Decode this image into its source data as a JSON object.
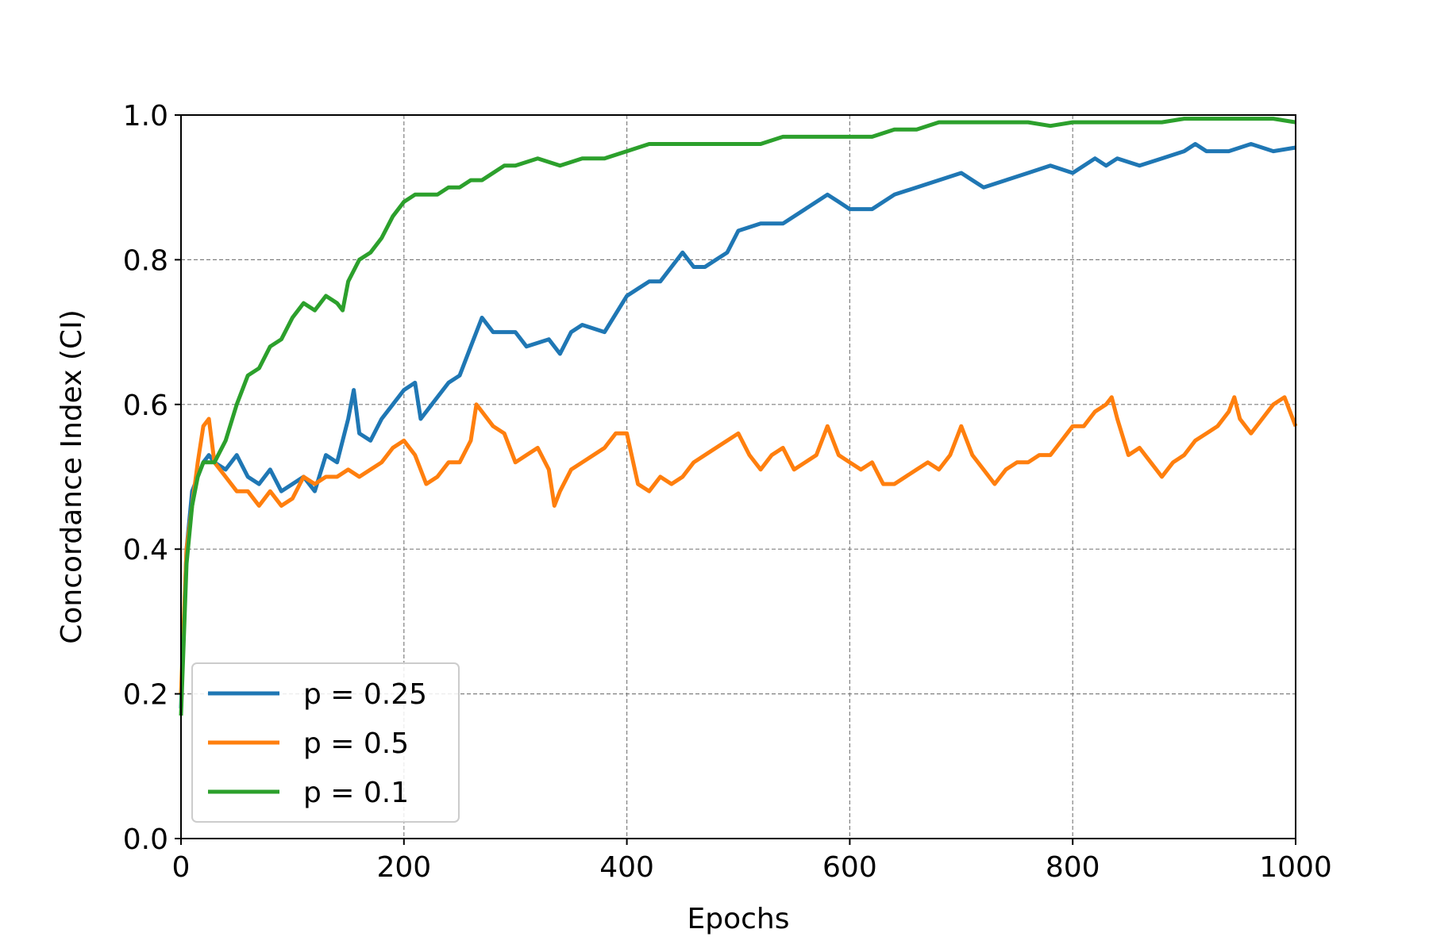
{
  "chart_data": {
    "type": "line",
    "title": "",
    "xlabel": "Epochs",
    "ylabel": "Concordance Index (CI)",
    "xlim": [
      0,
      1000
    ],
    "ylim": [
      0.0,
      1.0
    ],
    "xticks": [
      "0",
      "200",
      "400",
      "600",
      "800",
      "1000"
    ],
    "yticks": [
      "0.0",
      "0.2",
      "0.4",
      "0.6",
      "0.8",
      "1.0"
    ],
    "grid": true,
    "legend_position": "lower-left",
    "series": [
      {
        "name": "p = 0.25",
        "color": "#1f77b4",
        "x": [
          0,
          5,
          10,
          15,
          20,
          25,
          30,
          40,
          50,
          60,
          70,
          80,
          90,
          100,
          110,
          120,
          130,
          140,
          150,
          155,
          160,
          170,
          180,
          190,
          200,
          210,
          215,
          225,
          240,
          250,
          260,
          270,
          280,
          300,
          310,
          330,
          340,
          350,
          360,
          380,
          400,
          410,
          420,
          430,
          440,
          450,
          460,
          470,
          480,
          490,
          500,
          520,
          540,
          560,
          580,
          590,
          600,
          620,
          640,
          660,
          680,
          700,
          710,
          720,
          740,
          760,
          780,
          800,
          820,
          830,
          840,
          860,
          880,
          900,
          910,
          920,
          940,
          960,
          980,
          1000
        ],
        "y": [
          0.18,
          0.4,
          0.48,
          0.5,
          0.52,
          0.53,
          0.52,
          0.51,
          0.53,
          0.5,
          0.49,
          0.51,
          0.48,
          0.49,
          0.5,
          0.48,
          0.53,
          0.52,
          0.58,
          0.62,
          0.56,
          0.55,
          0.58,
          0.6,
          0.62,
          0.63,
          0.58,
          0.6,
          0.63,
          0.64,
          0.68,
          0.72,
          0.7,
          0.7,
          0.68,
          0.69,
          0.67,
          0.7,
          0.71,
          0.7,
          0.75,
          0.76,
          0.77,
          0.77,
          0.79,
          0.81,
          0.79,
          0.79,
          0.8,
          0.81,
          0.84,
          0.85,
          0.85,
          0.87,
          0.89,
          0.88,
          0.87,
          0.87,
          0.89,
          0.9,
          0.91,
          0.92,
          0.91,
          0.9,
          0.91,
          0.92,
          0.93,
          0.92,
          0.94,
          0.93,
          0.94,
          0.93,
          0.94,
          0.95,
          0.96,
          0.95,
          0.95,
          0.96,
          0.95,
          0.955
        ]
      },
      {
        "name": "p = 0.5",
        "color": "#ff7f0e",
        "x": [
          0,
          5,
          10,
          15,
          20,
          25,
          30,
          40,
          50,
          60,
          70,
          80,
          90,
          100,
          110,
          120,
          130,
          140,
          150,
          160,
          170,
          180,
          190,
          200,
          210,
          220,
          230,
          240,
          250,
          260,
          265,
          270,
          280,
          290,
          300,
          310,
          320,
          330,
          335,
          340,
          350,
          360,
          370,
          380,
          390,
          400,
          410,
          420,
          430,
          440,
          450,
          460,
          470,
          480,
          490,
          500,
          510,
          520,
          530,
          540,
          550,
          560,
          570,
          580,
          590,
          600,
          610,
          620,
          630,
          640,
          650,
          660,
          670,
          680,
          690,
          700,
          710,
          720,
          730,
          740,
          750,
          760,
          770,
          780,
          790,
          800,
          810,
          820,
          830,
          835,
          840,
          850,
          860,
          870,
          880,
          890,
          900,
          910,
          920,
          930,
          940,
          945,
          950,
          960,
          970,
          980,
          990,
          1000
        ],
        "y": [
          0.2,
          0.4,
          0.46,
          0.52,
          0.57,
          0.58,
          0.52,
          0.5,
          0.48,
          0.48,
          0.46,
          0.48,
          0.46,
          0.47,
          0.5,
          0.49,
          0.5,
          0.5,
          0.51,
          0.5,
          0.51,
          0.52,
          0.54,
          0.55,
          0.53,
          0.49,
          0.5,
          0.52,
          0.52,
          0.55,
          0.6,
          0.59,
          0.57,
          0.56,
          0.52,
          0.53,
          0.54,
          0.51,
          0.46,
          0.48,
          0.51,
          0.52,
          0.53,
          0.54,
          0.56,
          0.56,
          0.49,
          0.48,
          0.5,
          0.49,
          0.5,
          0.52,
          0.53,
          0.54,
          0.55,
          0.56,
          0.53,
          0.51,
          0.53,
          0.54,
          0.51,
          0.52,
          0.53,
          0.57,
          0.53,
          0.52,
          0.51,
          0.52,
          0.49,
          0.49,
          0.5,
          0.51,
          0.52,
          0.51,
          0.53,
          0.57,
          0.53,
          0.51,
          0.49,
          0.51,
          0.52,
          0.52,
          0.53,
          0.53,
          0.55,
          0.57,
          0.57,
          0.59,
          0.6,
          0.61,
          0.58,
          0.53,
          0.54,
          0.52,
          0.5,
          0.52,
          0.53,
          0.55,
          0.56,
          0.57,
          0.59,
          0.61,
          0.58,
          0.56,
          0.58,
          0.6,
          0.61,
          0.57
        ]
      },
      {
        "name": "p = 0.1",
        "color": "#2ca02c",
        "x": [
          0,
          5,
          10,
          15,
          20,
          30,
          40,
          50,
          60,
          70,
          80,
          90,
          100,
          110,
          120,
          130,
          140,
          145,
          150,
          160,
          170,
          180,
          190,
          200,
          210,
          220,
          230,
          240,
          250,
          260,
          270,
          280,
          290,
          300,
          320,
          340,
          360,
          380,
          400,
          420,
          440,
          460,
          480,
          500,
          520,
          540,
          560,
          580,
          600,
          620,
          640,
          660,
          680,
          700,
          720,
          740,
          760,
          780,
          800,
          820,
          840,
          860,
          880,
          900,
          920,
          940,
          960,
          980,
          1000
        ],
        "y": [
          0.17,
          0.38,
          0.46,
          0.5,
          0.52,
          0.52,
          0.55,
          0.6,
          0.64,
          0.65,
          0.68,
          0.69,
          0.72,
          0.74,
          0.73,
          0.75,
          0.74,
          0.73,
          0.77,
          0.8,
          0.81,
          0.83,
          0.86,
          0.88,
          0.89,
          0.89,
          0.89,
          0.9,
          0.9,
          0.91,
          0.91,
          0.92,
          0.93,
          0.93,
          0.94,
          0.93,
          0.94,
          0.94,
          0.95,
          0.96,
          0.96,
          0.96,
          0.96,
          0.96,
          0.96,
          0.97,
          0.97,
          0.97,
          0.97,
          0.97,
          0.98,
          0.98,
          0.99,
          0.99,
          0.99,
          0.99,
          0.99,
          0.985,
          0.99,
          0.99,
          0.99,
          0.99,
          0.99,
          0.995,
          0.995,
          0.995,
          0.995,
          0.995,
          0.99
        ]
      }
    ]
  }
}
